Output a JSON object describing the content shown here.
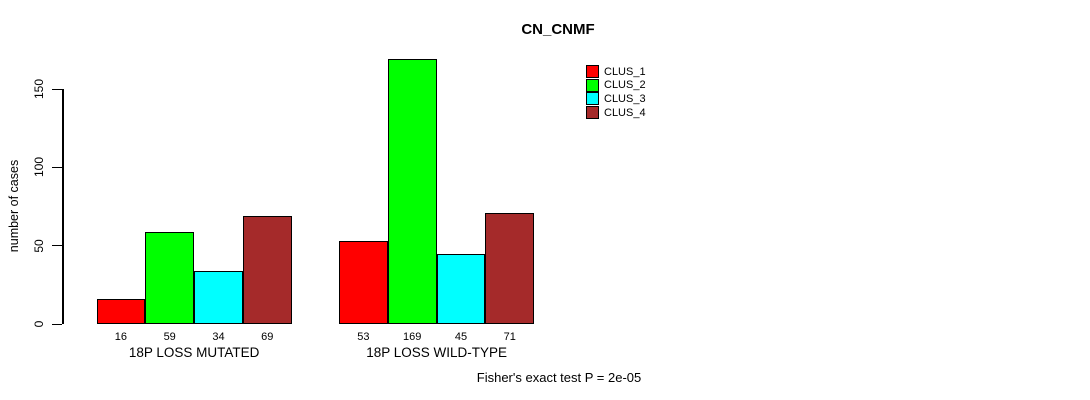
{
  "chart_data": {
    "type": "bar",
    "title": "CN_CNMF",
    "ylabel": "number of cases",
    "xlabel": "",
    "categories": [
      "18P LOSS MUTATED",
      "18P LOSS WILD-TYPE"
    ],
    "series": [
      {
        "name": "CLUS_1",
        "color": "#FF0000",
        "values": [
          16,
          53
        ]
      },
      {
        "name": "CLUS_2",
        "color": "#00FF00",
        "values": [
          59,
          169
        ]
      },
      {
        "name": "CLUS_3",
        "color": "#00FFFF",
        "values": [
          34,
          45
        ]
      },
      {
        "name": "CLUS_4",
        "color": "#A52A2A",
        "values": [
          69,
          71
        ]
      }
    ],
    "bar_value_labels": [
      [
        "16",
        "59",
        "34",
        "69"
      ],
      [
        "53",
        "169",
        "45",
        "71"
      ]
    ],
    "yticks": [
      "0",
      "50",
      "100",
      "150"
    ],
    "ytick_values": [
      0,
      50,
      100,
      150
    ],
    "ylim": [
      0,
      150
    ],
    "grid": false,
    "legend_position": "top-right",
    "footnote": "Fisher's exact test P = 2e-05",
    "axis_color": "#000000",
    "background_color": "#FFFFFF"
  }
}
